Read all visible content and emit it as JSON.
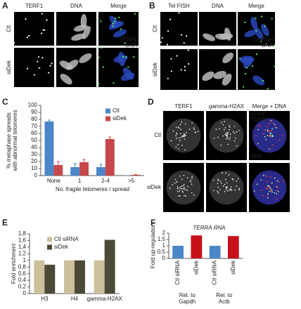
{
  "figure": {
    "panel_labels": [
      "A",
      "B",
      "C",
      "D",
      "E",
      "F"
    ],
    "A": {
      "columns": [
        "TERF1",
        "DNA",
        "Merge"
      ],
      "rows": [
        "Ctl",
        "siDek"
      ],
      "legend": [
        "TERF1",
        "DNA"
      ]
    },
    "B": {
      "columns": [
        "Tel FISH",
        "DNA",
        "Merge"
      ],
      "rows": [
        "Ctl",
        "siDek"
      ],
      "legend": [
        "Tel FISH",
        "DNA"
      ]
    },
    "D": {
      "columns": [
        "TERF1",
        "gamma-H2AX",
        "Merge + DNA"
      ],
      "rows": [
        "Ctl",
        "siDek"
      ],
      "legend": [
        "H2AX",
        "TERF1",
        "DNA"
      ]
    }
  },
  "chart_data": [
    {
      "type": "bar",
      "ylabel": [
        "% metaphase spreads",
        "with abnormal telomeres"
      ],
      "xlabel": "No. fragile telomeres / spread",
      "categories": [
        "None",
        "1",
        "2-4",
        ">5"
      ],
      "series": [
        {
          "name": "Ctl",
          "color": "#4a86c8",
          "values": [
            77,
            12,
            12,
            0
          ],
          "errors": [
            2,
            5,
            4,
            0
          ]
        },
        {
          "name": "siDek",
          "color": "#c8474a",
          "values": [
            15,
            19,
            52,
            1
          ],
          "errors": [
            5,
            4,
            3,
            0.5
          ]
        }
      ],
      "ylim": [
        0,
        100
      ],
      "yticks": [
        0,
        10,
        20,
        30,
        40,
        50,
        60,
        70,
        80,
        90,
        100
      ],
      "legend": "upper right"
    },
    {
      "type": "bar",
      "ylabel": [
        "Fold enrichment"
      ],
      "categories": [
        "H3",
        "H4",
        "gamma-H2AX"
      ],
      "series": [
        {
          "name": "Ctl siRNA",
          "color": "#cbbf9c",
          "values": [
            1,
            1,
            1
          ]
        },
        {
          "name": "siDek",
          "color": "#4b4a38",
          "values": [
            0.87,
            1,
            1.62
          ]
        }
      ],
      "ylim": [
        0,
        1.8
      ],
      "yticks": [
        0,
        {
          "value": 0.2,
          "label": "0,2"
        },
        {
          "value": 0.4,
          "label": "0,4"
        },
        {
          "value": 0.6,
          "label": "0,6"
        },
        {
          "value": 0.8,
          "label": "0,8"
        },
        1,
        {
          "value": 1.2,
          "label": "1,2"
        },
        {
          "value": 1.4,
          "label": "1,4"
        },
        {
          "value": 1.6,
          "label": "1,6"
        },
        {
          "value": 1.8,
          "label": "1,8"
        }
      ],
      "legend": "upper left"
    },
    {
      "type": "bar",
      "title": "TERRA RNA",
      "ylabel": [
        "Fold up-regulation"
      ],
      "categories": [
        "Ctl siRNA",
        "siDek",
        "Ctl siRNA",
        "siDek"
      ],
      "values": [
        1,
        1.82,
        1,
        1.77
      ],
      "colors": [
        "#4a86c8",
        "#c8101a",
        "#4a86c8",
        "#c8101a"
      ],
      "groups": [
        [
          "Rel. to",
          "Gapdh"
        ],
        [
          "Rel. to",
          "Actb"
        ]
      ],
      "ylim": [
        0,
        2
      ],
      "yticks": [
        0,
        {
          "value": 0.5,
          "label": "0,5"
        },
        1,
        {
          "value": 1.5,
          "label": "1,5"
        },
        2
      ]
    }
  ]
}
